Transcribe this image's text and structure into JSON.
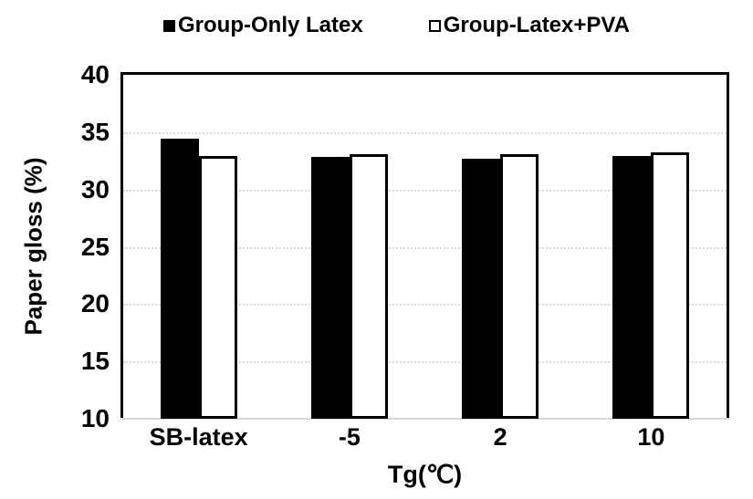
{
  "chart_data": {
    "type": "bar",
    "title": "",
    "categories": [
      "SB-latex",
      "-5",
      "2",
      "10"
    ],
    "series": [
      {
        "name": "Group-Only Latex",
        "marker": "filled",
        "fill": "#000000",
        "values": [
          34.4,
          32.8,
          32.7,
          32.9
        ]
      },
      {
        "name": "Group-Latex+PVA",
        "marker": "hollow",
        "fill": "#ffffff",
        "values": [
          32.9,
          33.1,
          33.1,
          33.2
        ]
      }
    ],
    "xlabel": "Tg(℃)",
    "ylabel": "Paper gloss (%)",
    "ylim": [
      10,
      40
    ],
    "yticks": [
      40,
      35,
      30,
      25,
      20,
      15,
      10
    ],
    "grid": "horizontal-dotted",
    "legend_position": "top-center",
    "colors": {
      "bar_filled": "#000000",
      "bar_hollow_fill": "#ffffff",
      "bar_outline": "#000000",
      "gridline": "#d9d9d9",
      "axis_frame": "#000000",
      "bottom_axis_line": "#d9d9d9",
      "background": "#ffffff",
      "text": "#000000"
    }
  }
}
